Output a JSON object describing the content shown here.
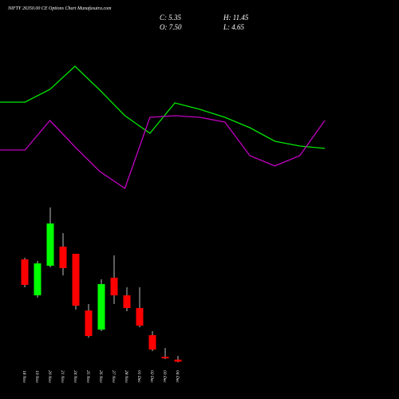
{
  "chart_data": [
    {
      "type": "line",
      "title": "NIFTY 26350.00  CE Options  Chart Munafasutra.com",
      "summary": [
        "C: 5.35",
        "H: 11.45",
        "O: 7.50",
        "L: 4.65"
      ],
      "ylim": [
        0,
        260
      ],
      "series": [
        {
          "color": "#00e600",
          "values": [
            132,
            132,
            148,
            177,
            147,
            115,
            93,
            131,
            123,
            113,
            100,
            83,
            77,
            74
          ]
        },
        {
          "color": "#c000c0",
          "values": [
            72,
            72,
            109,
            76,
            45,
            24,
            113,
            115,
            113,
            107,
            65,
            52,
            65,
            109
          ]
        }
      ]
    },
    {
      "type": "candlestick",
      "categories": [
        "18 Nov",
        "19 Nov",
        "20 Nov",
        "21 Nov",
        "24 Nov",
        "25 Nov",
        "26 Nov",
        "27 Nov",
        "28 Nov",
        "01 Dec",
        "02 Dec",
        "03 Dec",
        "04 Dec"
      ],
      "open": [
        114,
        75.8,
        107.2,
        127.5,
        119.9,
        59.7,
        39.4,
        94.5,
        75.8,
        62.3,
        33.5,
        10.6,
        7.5
      ],
      "high": [
        115.7,
        112.3,
        169.1,
        141.9,
        119.9,
        66.5,
        92.8,
        118.2,
        84.3,
        84.3,
        37.7,
        19.9,
        11.45
      ],
      "low": [
        84.3,
        73.3,
        105.5,
        97.0,
        60.6,
        30.9,
        37.7,
        66.5,
        58.9,
        41.9,
        16.5,
        8.1,
        4.65
      ],
      "close": [
        86.9,
        109.7,
        152.1,
        104.7,
        64.8,
        32.6,
        87.7,
        75.8,
        62.3,
        43.6,
        18.2,
        8.9,
        5.35
      ],
      "up_color": "#00ff00",
      "down_color": "#ff0000",
      "wick_color": "#bbbbbb",
      "ylim": [
        -34.3,
        169.1
      ]
    }
  ]
}
